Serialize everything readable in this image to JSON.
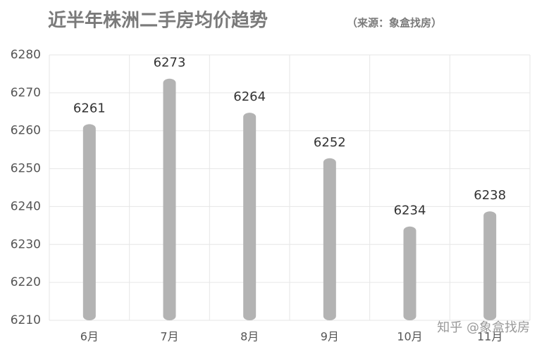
{
  "chart_data": {
    "type": "bar",
    "title": "近半年株洲二手房均价趋势",
    "subtitle": "（来源：象盒找房）",
    "categories": [
      "6月",
      "7月",
      "8月",
      "9月",
      "10月",
      "11月"
    ],
    "values": [
      6261,
      6273,
      6264,
      6252,
      6234,
      6238
    ],
    "color": "#b3b3b3",
    "ylim": [
      6210,
      6280
    ],
    "yticks": [
      6210,
      6220,
      6230,
      6240,
      6250,
      6260,
      6270,
      6280
    ],
    "grid": true,
    "watermark": "知乎 @象盒找房"
  }
}
